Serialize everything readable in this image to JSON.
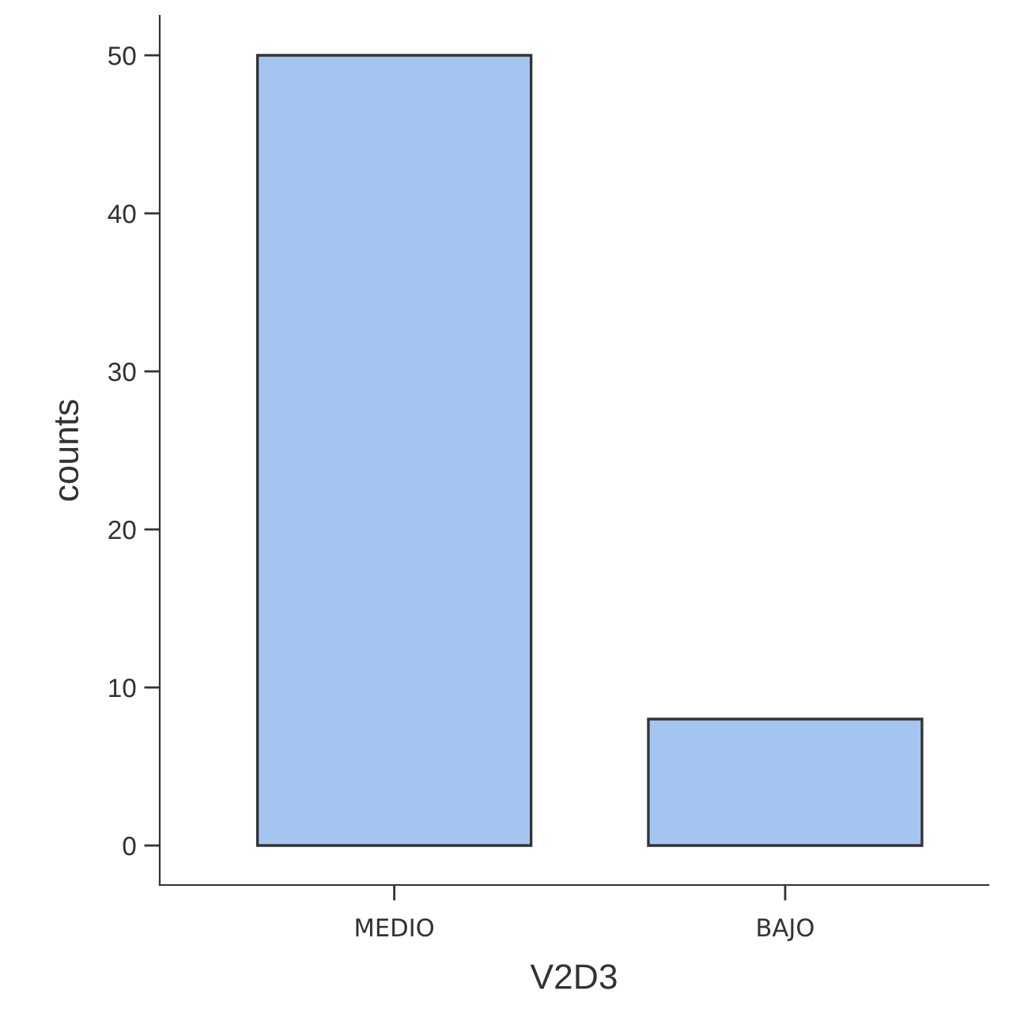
{
  "chart_data": {
    "type": "bar",
    "xlabel": "V2D3",
    "ylabel": "counts",
    "categories": [
      "MEDIO",
      "BAJO"
    ],
    "values": [
      50,
      8
    ],
    "color": "#a5c5f1",
    "ylim": [
      -2.5,
      52.5
    ],
    "yticks": [
      0,
      10,
      20,
      30,
      40,
      50
    ],
    "grid": false,
    "legend": false
  }
}
